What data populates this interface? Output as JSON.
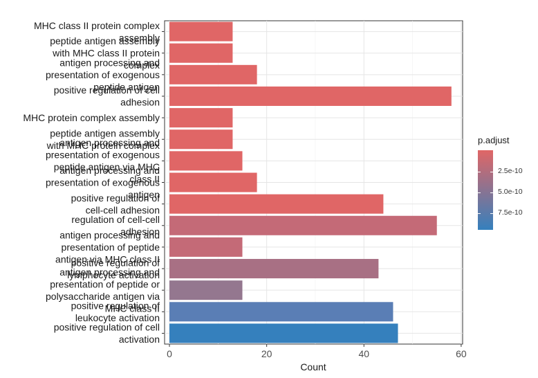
{
  "chart_data": {
    "type": "bar",
    "orientation": "horizontal",
    "xlabel": "Count",
    "ylabel": "",
    "xlim": [
      -1,
      60.3
    ],
    "x_ticks": [
      0,
      20,
      40,
      60
    ],
    "grid": true,
    "legend_placement": "right",
    "categories": [
      {
        "lines": [
          "MHC class II protein complex",
          "assembly"
        ],
        "value": 13,
        "color": "#E06666"
      },
      {
        "lines": [
          "peptide antigen assembly",
          "with MHC class II protein",
          "complex"
        ],
        "value": 13,
        "color": "#E06666"
      },
      {
        "lines": [
          "antigen processing and",
          "presentation of exogenous",
          "peptide antigen"
        ],
        "value": 18,
        "color": "#E06666"
      },
      {
        "lines": [
          "positive regulation of cell",
          "adhesion"
        ],
        "value": 58,
        "color": "#E06666"
      },
      {
        "lines": [
          "MHC protein complex assembly"
        ],
        "value": 13,
        "color": "#E06666"
      },
      {
        "lines": [
          "peptide antigen assembly",
          "with MHC protein complex"
        ],
        "value": 13,
        "color": "#E06666"
      },
      {
        "lines": [
          "antigen processing and",
          "presentation of exogenous",
          "peptide antigen via MHC",
          "class II"
        ],
        "value": 15,
        "color": "#E06666"
      },
      {
        "lines": [
          "antigen processing and",
          "presentation of exogenous",
          "antigen"
        ],
        "value": 18,
        "color": "#E06666"
      },
      {
        "lines": [
          "positive regulation of",
          "cell-cell adhesion"
        ],
        "value": 44,
        "color": "#E06666"
      },
      {
        "lines": [
          "regulation of cell-cell",
          "adhesion"
        ],
        "value": 55,
        "color": "#C46A77"
      },
      {
        "lines": [
          "antigen processing and",
          "presentation of peptide",
          "antigen via MHC class II"
        ],
        "value": 15,
        "color": "#C46A77"
      },
      {
        "lines": [
          "positive regulation of",
          "lymphocyte activation"
        ],
        "value": 43,
        "color": "#A87084"
      },
      {
        "lines": [
          "antigen processing and",
          "presentation of peptide or",
          "polysaccharide antigen via",
          "MHC class II"
        ],
        "value": 15,
        "color": "#94778F"
      },
      {
        "lines": [
          "positive regulation of",
          "leukocyte activation"
        ],
        "value": 46,
        "color": "#5A7EB5"
      },
      {
        "lines": [
          "positive regulation of cell",
          "activation"
        ],
        "value": 47,
        "color": "#3580BD"
      }
    ],
    "legend": {
      "title": "p.adjust",
      "labels": [
        "2.5e-10",
        "5.0e-10",
        "7.5e-10"
      ],
      "color_high": "#E06666",
      "color_low": "#3580BD"
    }
  }
}
